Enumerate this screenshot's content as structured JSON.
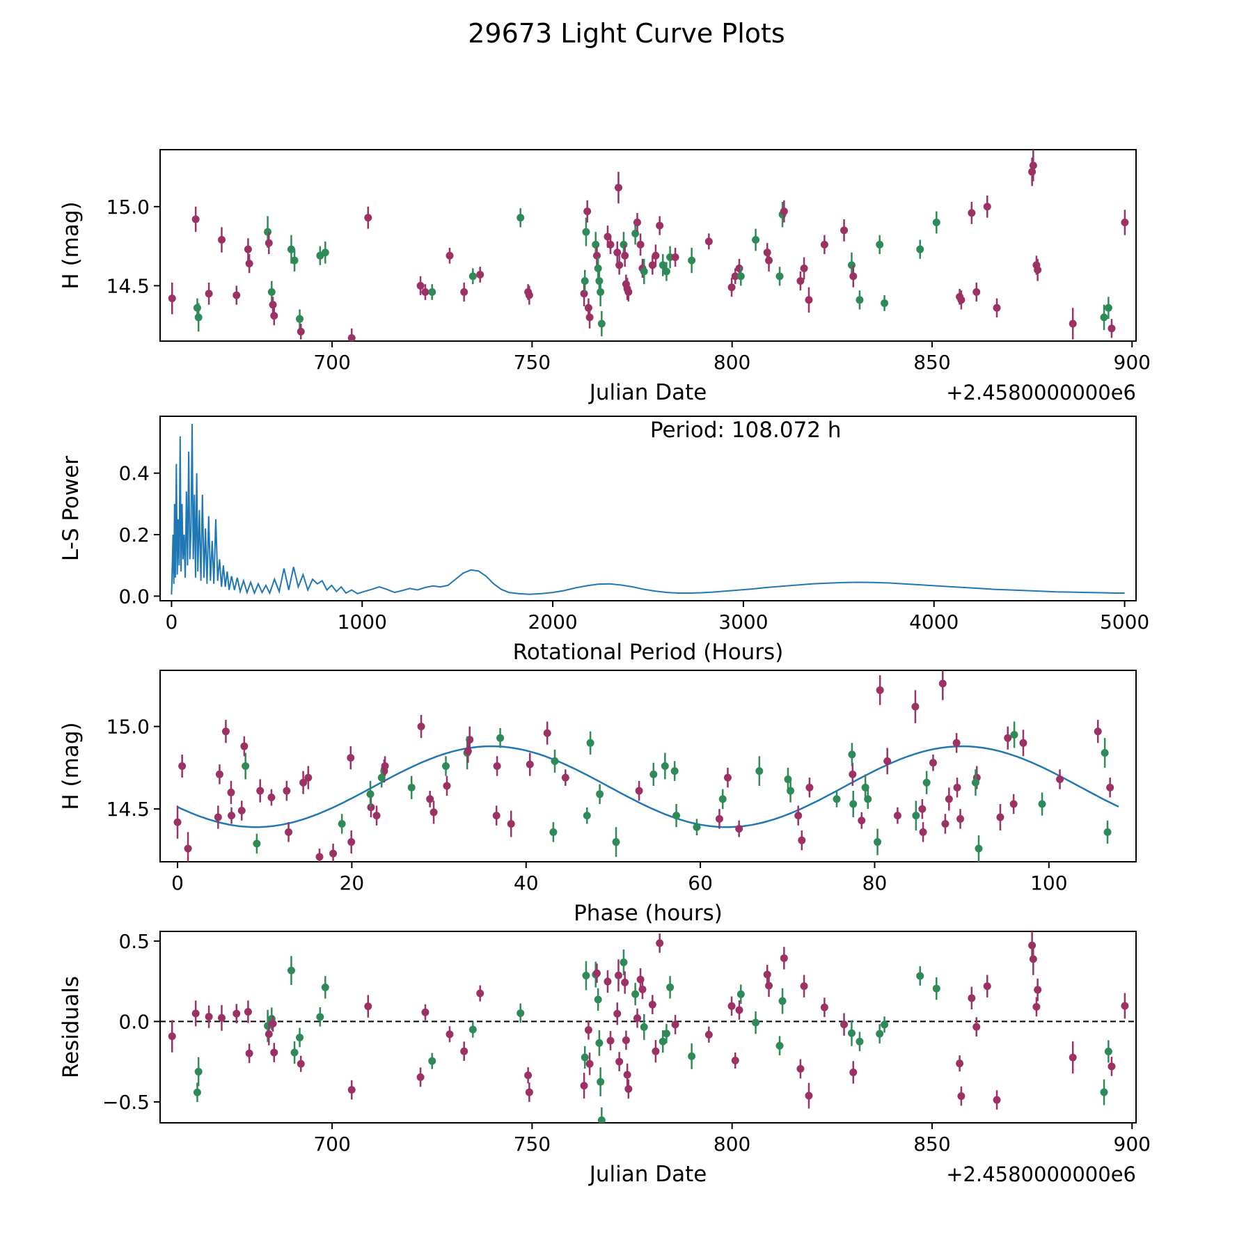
{
  "title": "29673 Light Curve Plots",
  "colors": {
    "series_purple": "#9b3164",
    "series_green": "#2e8b57",
    "line_blue": "#1f77b4",
    "axes": "#000000",
    "background": "#ffffff"
  },
  "observations": {
    "epoch_offset": 660.0,
    "period_days": 4.503,
    "columns": [
      "jd_minus_2458000e0",
      "H_mag",
      "err_mag",
      "color_index"
    ],
    "colors": [
      "#9b3164",
      "#2e8b57"
    ],
    "rows": [
      [
        660.0,
        14.42,
        0.1,
        0
      ],
      [
        665.9,
        14.92,
        0.08,
        0
      ],
      [
        666.3,
        14.36,
        0.06,
        1
      ],
      [
        666.6,
        14.3,
        0.09,
        1
      ],
      [
        669.2,
        14.45,
        0.07,
        0
      ],
      [
        672.4,
        14.79,
        0.08,
        0
      ],
      [
        676.1,
        14.44,
        0.06,
        0
      ],
      [
        679.0,
        14.73,
        0.07,
        0
      ],
      [
        679.3,
        14.64,
        0.06,
        0
      ],
      [
        683.9,
        14.84,
        0.1,
        1
      ],
      [
        684.2,
        14.77,
        0.07,
        0
      ],
      [
        684.9,
        14.46,
        0.07,
        1
      ],
      [
        685.2,
        14.38,
        0.05,
        0
      ],
      [
        685.5,
        14.31,
        0.06,
        0
      ],
      [
        689.8,
        14.73,
        0.09,
        1
      ],
      [
        690.6,
        14.66,
        0.07,
        1
      ],
      [
        691.9,
        14.29,
        0.06,
        1
      ],
      [
        692.2,
        14.21,
        0.05,
        0
      ],
      [
        697.0,
        14.69,
        0.06,
        1
      ],
      [
        698.3,
        14.71,
        0.07,
        1
      ],
      [
        704.9,
        14.17,
        0.06,
        0
      ],
      [
        709.0,
        14.93,
        0.07,
        0
      ],
      [
        722.1,
        14.5,
        0.06,
        0
      ],
      [
        723.3,
        14.46,
        0.05,
        0
      ],
      [
        725.0,
        14.46,
        0.05,
        1
      ],
      [
        729.4,
        14.69,
        0.05,
        0
      ],
      [
        733.0,
        14.46,
        0.06,
        0
      ],
      [
        735.2,
        14.56,
        0.05,
        1
      ],
      [
        737.0,
        14.57,
        0.05,
        0
      ],
      [
        747.1,
        14.93,
        0.06,
        1
      ],
      [
        749.0,
        14.46,
        0.05,
        0
      ],
      [
        749.3,
        14.44,
        0.06,
        0
      ],
      [
        763.0,
        14.45,
        0.08,
        0
      ],
      [
        763.2,
        14.53,
        0.07,
        1
      ],
      [
        763.5,
        14.84,
        0.09,
        1
      ],
      [
        763.8,
        14.97,
        0.07,
        0
      ],
      [
        764.1,
        14.36,
        0.06,
        0
      ],
      [
        764.4,
        14.3,
        0.07,
        0
      ],
      [
        765.9,
        14.76,
        0.08,
        1
      ],
      [
        766.2,
        14.69,
        0.06,
        0
      ],
      [
        766.5,
        14.61,
        0.07,
        1
      ],
      [
        766.8,
        14.53,
        0.08,
        1
      ],
      [
        767.1,
        14.46,
        0.09,
        1
      ],
      [
        767.4,
        14.26,
        0.08,
        1
      ],
      [
        768.9,
        14.81,
        0.07,
        0
      ],
      [
        769.6,
        14.76,
        0.06,
        0
      ],
      [
        771.6,
        15.12,
        0.1,
        0
      ],
      [
        771.3,
        14.71,
        0.07,
        0
      ],
      [
        771.8,
        14.63,
        0.06,
        0
      ],
      [
        772.9,
        14.76,
        0.08,
        1
      ],
      [
        773.2,
        14.69,
        0.07,
        0
      ],
      [
        773.5,
        14.51,
        0.06,
        0
      ],
      [
        773.8,
        14.48,
        0.07,
        0
      ],
      [
        774.1,
        14.46,
        0.06,
        0
      ],
      [
        775.8,
        14.83,
        0.07,
        1
      ],
      [
        776.3,
        14.9,
        0.06,
        0
      ],
      [
        777.1,
        14.76,
        0.07,
        0
      ],
      [
        777.6,
        14.61,
        0.06,
        0
      ],
      [
        778.0,
        14.59,
        0.08,
        1
      ],
      [
        780.1,
        14.63,
        0.06,
        0
      ],
      [
        780.9,
        14.69,
        0.07,
        0
      ],
      [
        781.9,
        14.88,
        0.06,
        0
      ],
      [
        782.7,
        14.63,
        0.07,
        1
      ],
      [
        783.6,
        14.59,
        0.06,
        1
      ],
      [
        784.5,
        14.68,
        0.07,
        1
      ],
      [
        785.8,
        14.68,
        0.06,
        0
      ],
      [
        789.9,
        14.66,
        0.08,
        1
      ],
      [
        794.2,
        14.78,
        0.05,
        0
      ],
      [
        799.9,
        14.49,
        0.06,
        0
      ],
      [
        800.8,
        14.56,
        0.05,
        0
      ],
      [
        801.8,
        14.61,
        0.06,
        0
      ],
      [
        802.2,
        14.56,
        0.06,
        1
      ],
      [
        805.9,
        14.79,
        0.07,
        1
      ],
      [
        808.8,
        14.71,
        0.06,
        0
      ],
      [
        809.2,
        14.66,
        0.07,
        0
      ],
      [
        811.9,
        14.56,
        0.06,
        1
      ],
      [
        812.6,
        14.95,
        0.08,
        1
      ],
      [
        813.0,
        14.97,
        0.07,
        0
      ],
      [
        817.1,
        14.53,
        0.06,
        0
      ],
      [
        818.0,
        14.61,
        0.07,
        0
      ],
      [
        819.2,
        14.41,
        0.08,
        0
      ],
      [
        823.1,
        14.76,
        0.06,
        0
      ],
      [
        828.0,
        14.85,
        0.07,
        0
      ],
      [
        829.9,
        14.63,
        0.08,
        1
      ],
      [
        830.3,
        14.56,
        0.07,
        0
      ],
      [
        831.9,
        14.41,
        0.06,
        1
      ],
      [
        836.9,
        14.76,
        0.06,
        1
      ],
      [
        838.1,
        14.39,
        0.05,
        1
      ],
      [
        847.0,
        14.73,
        0.06,
        1
      ],
      [
        851.1,
        14.9,
        0.07,
        1
      ],
      [
        856.9,
        14.43,
        0.05,
        0
      ],
      [
        857.3,
        14.41,
        0.06,
        0
      ],
      [
        859.9,
        14.96,
        0.07,
        0
      ],
      [
        861.1,
        14.46,
        0.06,
        0
      ],
      [
        863.8,
        15.0,
        0.07,
        0
      ],
      [
        866.2,
        14.36,
        0.06,
        0
      ],
      [
        875.0,
        15.22,
        0.09,
        0
      ],
      [
        875.3,
        15.26,
        0.1,
        0
      ],
      [
        876.1,
        14.63,
        0.06,
        0
      ],
      [
        876.4,
        14.6,
        0.07,
        0
      ],
      [
        885.2,
        14.26,
        0.1,
        0
      ],
      [
        893.0,
        14.3,
        0.08,
        1
      ],
      [
        894.1,
        14.36,
        0.07,
        1
      ],
      [
        894.9,
        14.23,
        0.06,
        0
      ],
      [
        898.2,
        14.9,
        0.08,
        0
      ]
    ]
  },
  "chart_data": [
    {
      "id": "jd_lightcurve",
      "type": "scatter",
      "xlabel": "Julian Date",
      "ylabel": "H (mag)",
      "x_offset_label": "+2.4580000000e6",
      "xlim": [
        657,
        901
      ],
      "ylim": [
        14.15,
        15.36
      ],
      "xticks": [
        700,
        750,
        800,
        850,
        900
      ],
      "xtick_labels": [
        "700",
        "750",
        "800",
        "850",
        "900"
      ],
      "yticks": [
        14.5,
        15.0
      ],
      "ytick_labels": [
        "14.5",
        "15.0"
      ]
    },
    {
      "id": "periodogram",
      "type": "line",
      "xlabel": "Rotational Period (Hours)",
      "ylabel": "L-S Power",
      "annotation": "Period: 108.072 h",
      "xlim": [
        -60,
        5060
      ],
      "ylim": [
        -0.015,
        0.585
      ],
      "xticks": [
        0,
        1000,
        2000,
        3000,
        4000,
        5000
      ],
      "xtick_labels": [
        "0",
        "1000",
        "2000",
        "3000",
        "4000",
        "5000"
      ],
      "yticks": [
        0.0,
        0.2,
        0.4
      ],
      "ytick_labels": [
        "0.0",
        "0.2",
        "0.4"
      ],
      "points": [
        [
          0,
          0.005
        ],
        [
          2,
          0.05
        ],
        [
          8,
          0.2
        ],
        [
          12,
          0.04
        ],
        [
          16,
          0.3
        ],
        [
          20,
          0.06
        ],
        [
          25,
          0.43
        ],
        [
          30,
          0.07
        ],
        [
          35,
          0.25
        ],
        [
          40,
          0.1
        ],
        [
          45,
          0.52
        ],
        [
          50,
          0.08
        ],
        [
          55,
          0.3
        ],
        [
          60,
          0.12
        ],
        [
          66,
          0.2
        ],
        [
          72,
          0.06
        ],
        [
          78,
          0.34
        ],
        [
          84,
          0.1
        ],
        [
          90,
          0.47
        ],
        [
          96,
          0.12
        ],
        [
          102,
          0.22
        ],
        [
          108,
          0.56
        ],
        [
          114,
          0.12
        ],
        [
          120,
          0.33
        ],
        [
          126,
          0.06
        ],
        [
          132,
          0.4
        ],
        [
          138,
          0.08
        ],
        [
          146,
          0.28
        ],
        [
          154,
          0.05
        ],
        [
          162,
          0.33
        ],
        [
          170,
          0.06
        ],
        [
          178,
          0.22
        ],
        [
          186,
          0.04
        ],
        [
          195,
          0.26
        ],
        [
          204,
          0.05
        ],
        [
          213,
          0.18
        ],
        [
          222,
          0.04
        ],
        [
          232,
          0.25
        ],
        [
          242,
          0.05
        ],
        [
          252,
          0.12
        ],
        [
          262,
          0.03
        ],
        [
          272,
          0.1
        ],
        [
          282,
          0.03
        ],
        [
          292,
          0.08
        ],
        [
          302,
          0.02
        ],
        [
          315,
          0.065
        ],
        [
          330,
          0.02
        ],
        [
          345,
          0.06
        ],
        [
          360,
          0.015
        ],
        [
          378,
          0.05
        ],
        [
          396,
          0.012
        ],
        [
          415,
          0.045
        ],
        [
          435,
          0.01
        ],
        [
          455,
          0.04
        ],
        [
          475,
          0.012
        ],
        [
          495,
          0.035
        ],
        [
          515,
          0.01
        ],
        [
          540,
          0.055
        ],
        [
          565,
          0.015
        ],
        [
          590,
          0.09
        ],
        [
          615,
          0.02
        ],
        [
          640,
          0.095
        ],
        [
          665,
          0.03
        ],
        [
          690,
          0.07
        ],
        [
          715,
          0.02
        ],
        [
          740,
          0.055
        ],
        [
          765,
          0.04
        ],
        [
          790,
          0.05
        ],
        [
          815,
          0.02
        ],
        [
          840,
          0.035
        ],
        [
          865,
          0.015
        ],
        [
          890,
          0.03
        ],
        [
          915,
          0.01
        ],
        [
          945,
          0.02
        ],
        [
          975,
          0.008
        ],
        [
          1010,
          0.015
        ],
        [
          1050,
          0.022
        ],
        [
          1090,
          0.03
        ],
        [
          1130,
          0.022
        ],
        [
          1170,
          0.012
        ],
        [
          1210,
          0.018
        ],
        [
          1250,
          0.025
        ],
        [
          1290,
          0.02
        ],
        [
          1330,
          0.028
        ],
        [
          1370,
          0.033
        ],
        [
          1410,
          0.03
        ],
        [
          1450,
          0.035
        ],
        [
          1490,
          0.055
        ],
        [
          1530,
          0.075
        ],
        [
          1570,
          0.085
        ],
        [
          1610,
          0.082
        ],
        [
          1650,
          0.065
        ],
        [
          1690,
          0.04
        ],
        [
          1730,
          0.022
        ],
        [
          1770,
          0.012
        ],
        [
          1820,
          0.008
        ],
        [
          1880,
          0.006
        ],
        [
          1940,
          0.008
        ],
        [
          2000,
          0.012
        ],
        [
          2060,
          0.018
        ],
        [
          2120,
          0.027
        ],
        [
          2180,
          0.034
        ],
        [
          2240,
          0.039
        ],
        [
          2300,
          0.04
        ],
        [
          2360,
          0.036
        ],
        [
          2420,
          0.03
        ],
        [
          2480,
          0.022
        ],
        [
          2540,
          0.016
        ],
        [
          2600,
          0.012
        ],
        [
          2660,
          0.01
        ],
        [
          2720,
          0.01
        ],
        [
          2780,
          0.011
        ],
        [
          2840,
          0.013
        ],
        [
          2900,
          0.016
        ],
        [
          2960,
          0.019
        ],
        [
          3040,
          0.023
        ],
        [
          3120,
          0.028
        ],
        [
          3200,
          0.032
        ],
        [
          3280,
          0.036
        ],
        [
          3360,
          0.04
        ],
        [
          3440,
          0.042
        ],
        [
          3520,
          0.044
        ],
        [
          3600,
          0.045
        ],
        [
          3680,
          0.0445
        ],
        [
          3760,
          0.043
        ],
        [
          3840,
          0.04
        ],
        [
          3920,
          0.037
        ],
        [
          4000,
          0.034
        ],
        [
          4080,
          0.031
        ],
        [
          4160,
          0.028
        ],
        [
          4240,
          0.025
        ],
        [
          4320,
          0.022
        ],
        [
          4400,
          0.02
        ],
        [
          4480,
          0.018
        ],
        [
          4560,
          0.016
        ],
        [
          4640,
          0.014
        ],
        [
          4720,
          0.013
        ],
        [
          4800,
          0.012
        ],
        [
          4880,
          0.011
        ],
        [
          4960,
          0.01
        ],
        [
          5000,
          0.01
        ]
      ]
    },
    {
      "id": "phase_folded",
      "type": "scatter_with_fit",
      "xlabel": "Phase (hours)",
      "ylabel": "H (mag)",
      "xlim": [
        -2,
        110
      ],
      "ylim": [
        14.18,
        15.34
      ],
      "xticks": [
        0,
        20,
        40,
        60,
        80,
        100
      ],
      "xtick_labels": [
        "0",
        "20",
        "40",
        "60",
        "80",
        "100"
      ],
      "yticks": [
        14.5,
        15.0
      ],
      "ytick_labels": [
        "14.5",
        "15.0"
      ],
      "model": {
        "mean": 14.635,
        "amplitude": 0.245,
        "period_hours": 108.072,
        "half_period_hours": 54.036,
        "phase_of_max_hours": 36
      }
    },
    {
      "id": "residuals",
      "type": "scatter",
      "xlabel": "Julian Date",
      "ylabel": "Residuals",
      "x_offset_label": "+2.4580000000e6",
      "xlim": [
        657,
        901
      ],
      "ylim": [
        -0.63,
        0.56
      ],
      "xticks": [
        700,
        750,
        800,
        850,
        900
      ],
      "xtick_labels": [
        "700",
        "750",
        "800",
        "850",
        "900"
      ],
      "yticks": [
        -0.5,
        0.0,
        0.5
      ],
      "ytick_labels": [
        "−0.5",
        "0.0",
        "0.5"
      ],
      "zero_line": true
    }
  ]
}
